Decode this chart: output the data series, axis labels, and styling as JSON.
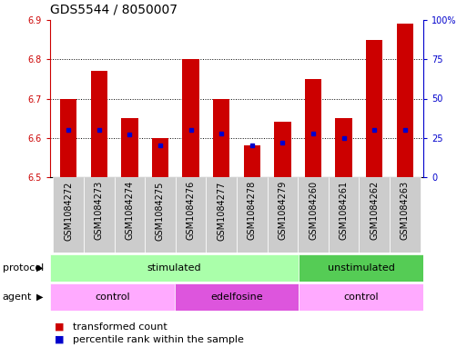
{
  "title": "GDS5544 / 8050007",
  "samples": [
    "GSM1084272",
    "GSM1084273",
    "GSM1084274",
    "GSM1084275",
    "GSM1084276",
    "GSM1084277",
    "GSM1084278",
    "GSM1084279",
    "GSM1084260",
    "GSM1084261",
    "GSM1084262",
    "GSM1084263"
  ],
  "bar_values": [
    6.7,
    6.77,
    6.65,
    6.6,
    6.8,
    6.7,
    6.58,
    6.64,
    6.75,
    6.65,
    6.85,
    6.89
  ],
  "percentile_values": [
    30,
    30,
    27,
    20,
    30,
    28,
    20,
    22,
    28,
    25,
    30,
    30
  ],
  "ymin": 6.5,
  "ymax": 6.9,
  "yticks": [
    6.5,
    6.6,
    6.7,
    6.8,
    6.9
  ],
  "right_yticks": [
    0,
    25,
    50,
    75,
    100
  ],
  "right_ytick_labels": [
    "0",
    "25",
    "50",
    "75",
    "100%"
  ],
  "bar_color": "#cc0000",
  "dot_color": "#0000cc",
  "bar_width": 0.55,
  "protocol_groups": [
    {
      "label": "stimulated",
      "start": 0,
      "end": 7,
      "color": "#aaffaa"
    },
    {
      "label": "unstimulated",
      "start": 8,
      "end": 11,
      "color": "#55cc55"
    }
  ],
  "agent_groups": [
    {
      "label": "control",
      "start": 0,
      "end": 3,
      "color": "#ffaaff"
    },
    {
      "label": "edelfosine",
      "start": 4,
      "end": 7,
      "color": "#dd55dd"
    },
    {
      "label": "control",
      "start": 8,
      "end": 11,
      "color": "#ffaaff"
    }
  ],
  "ylabel_left_color": "#cc0000",
  "ylabel_right_color": "#0000cc",
  "grid_color": "#000000",
  "bg_color": "#ffffff",
  "title_fontsize": 10,
  "tick_fontsize": 7,
  "label_fontsize": 8,
  "legend_fontsize": 8,
  "xtick_bg": "#cccccc"
}
